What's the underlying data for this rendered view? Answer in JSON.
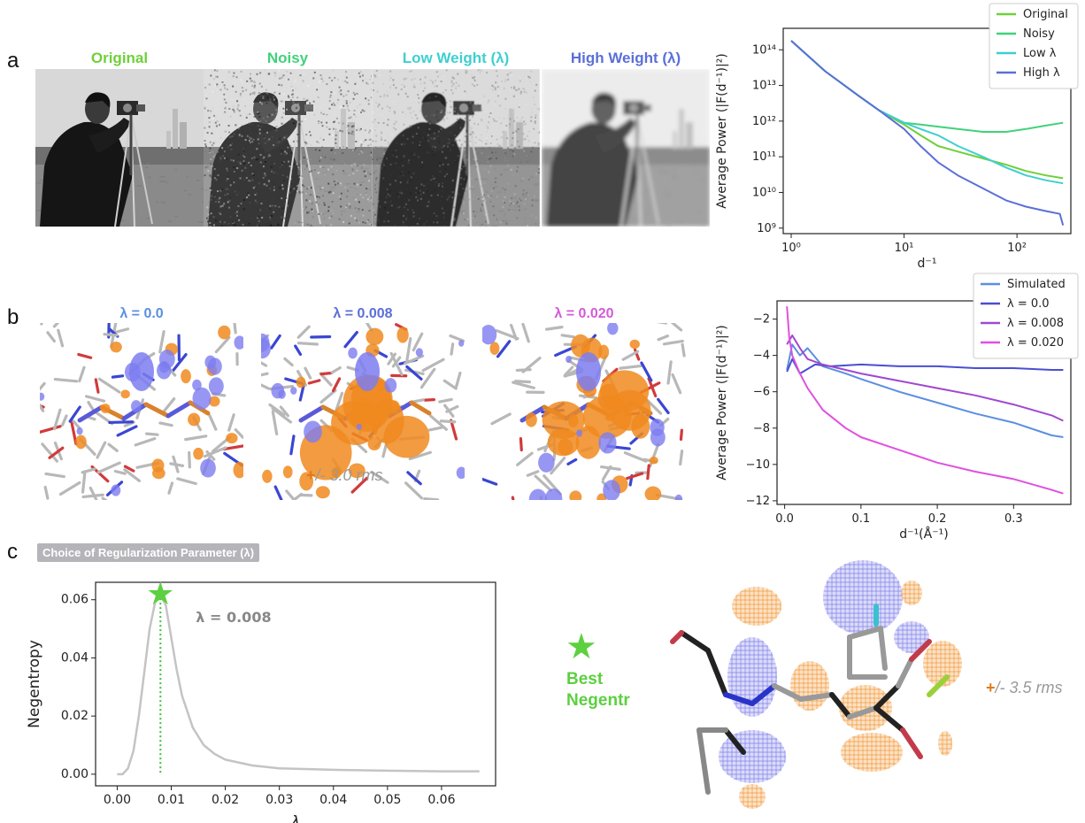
{
  "panel_labels": {
    "a": "a",
    "b": "b",
    "c": "c"
  },
  "row_a": {
    "images": [
      {
        "title": "Original",
        "color": "#6fd03a",
        "blur": 0,
        "noise": 0,
        "dim": 1.0
      },
      {
        "title": "Noisy",
        "color": "#3fd27a",
        "blur": 0,
        "noise": 0.9,
        "dim": 0.85
      },
      {
        "title": "Low Weight (λ)",
        "color": "#3fcfd0",
        "blur": 0.6,
        "noise": 0.45,
        "dim": 0.9
      },
      {
        "title": "High Weight (λ)",
        "color": "#5b6fd8",
        "blur": 2.2,
        "noise": 0,
        "dim": 0.8
      }
    ]
  },
  "row_b": {
    "maps": [
      {
        "title": "λ = 0.0",
        "color": "#5b8fe0",
        "orange": 0.35,
        "blue": 0.55
      },
      {
        "title": "λ = 0.008",
        "color": "#5b6fd8",
        "orange": 0.75,
        "blue": 0.35
      },
      {
        "title": "λ = 0.020",
        "color": "#d35bd8",
        "orange": 1.0,
        "blue": 0.3
      }
    ],
    "contour_plus": "+",
    "contour_rest": "/- 3.0 rms"
  },
  "row_c": {
    "chip": "Choice of Regularization Parameter (λ)",
    "star": "★",
    "best_label_line1": "Best",
    "best_label_line2": "Negentr",
    "contour_plus": "+",
    "contour_rest": "/- 3.5 rms"
  },
  "chart_data": [
    {
      "id": "power-spectrum-images",
      "type": "line",
      "xlabel": "d⁻¹",
      "ylabel": "Average Power (|F(d⁻¹)|²)",
      "xscale": "log",
      "yscale": "log",
      "xlim": [
        0.85,
        300
      ],
      "ylim": [
        700000000.0,
        400000000000000.0
      ],
      "xticks": [
        {
          "v": 1,
          "label": "10⁰"
        },
        {
          "v": 10,
          "label": "10¹"
        },
        {
          "v": 100,
          "label": "10²"
        }
      ],
      "yticks": [
        {
          "v": 1000000000.0,
          "label": "10⁹"
        },
        {
          "v": 10000000000.0,
          "label": "10¹⁰"
        },
        {
          "v": 100000000000.0,
          "label": "10¹¹"
        },
        {
          "v": 1000000000000.0,
          "label": "10¹²"
        },
        {
          "v": 10000000000000.0,
          "label": "10¹³"
        },
        {
          "v": 100000000000000.0,
          "label": "10¹⁴"
        }
      ],
      "legend_placement": "top-right",
      "series": [
        {
          "name": "Original",
          "color": "#6fd03a",
          "x": [
            1,
            2,
            4,
            6,
            10,
            14,
            20,
            30,
            50,
            80,
            120,
            180,
            256
          ],
          "y": [
            180000000000000.0,
            25000000000000.0,
            5000000000000.0,
            2000000000000.0,
            800000000000.0,
            400000000000.0,
            200000000000.0,
            140000000000.0,
            90000000000.0,
            60000000000.0,
            40000000000.0,
            30000000000.0,
            25000000000.0
          ]
        },
        {
          "name": "Noisy",
          "color": "#3fd27a",
          "x": [
            1,
            2,
            4,
            6,
            10,
            14,
            20,
            30,
            50,
            80,
            120,
            180,
            256
          ],
          "y": [
            180000000000000.0,
            25000000000000.0,
            5000000000000.0,
            2000000000000.0,
            900000000000.0,
            800000000000.0,
            700000000000.0,
            600000000000.0,
            500000000000.0,
            500000000000.0,
            600000000000.0,
            750000000000.0,
            900000000000.0
          ]
        },
        {
          "name": "Low λ",
          "color": "#3fcfd0",
          "x": [
            1,
            2,
            4,
            6,
            10,
            14,
            20,
            30,
            50,
            80,
            120,
            180,
            256
          ],
          "y": [
            180000000000000.0,
            25000000000000.0,
            5000000000000.0,
            2000000000000.0,
            900000000000.0,
            600000000000.0,
            400000000000.0,
            200000000000.0,
            100000000000.0,
            50000000000.0,
            30000000000.0,
            22000000000.0,
            18000000000.0
          ]
        },
        {
          "name": "High λ",
          "color": "#5b6fd8",
          "x": [
            1,
            2,
            4,
            6,
            10,
            14,
            20,
            30,
            50,
            80,
            120,
            180,
            240,
            256
          ],
          "y": [
            180000000000000.0,
            25000000000000.0,
            5000000000000.0,
            2000000000000.0,
            600000000000.0,
            200000000000.0,
            70000000000.0,
            30000000000.0,
            13000000000.0,
            6000000000.0,
            4000000000.0,
            3000000000.0,
            2500000000.0,
            1200000000.0
          ]
        }
      ]
    },
    {
      "id": "power-spectrum-maps",
      "type": "line",
      "xlabel": "d⁻¹(Å⁻¹)",
      "ylabel": "Average Power (|F(d⁻¹)|²)",
      "xlim": [
        -0.01,
        0.375
      ],
      "ylim": [
        -12.2,
        -1.0
      ],
      "xticks": [
        {
          "v": 0.0,
          "label": "0.0"
        },
        {
          "v": 0.1,
          "label": "0.1"
        },
        {
          "v": 0.2,
          "label": "0.2"
        },
        {
          "v": 0.3,
          "label": "0.3"
        }
      ],
      "yticks": [
        {
          "v": -2,
          "label": "−2"
        },
        {
          "v": -4,
          "label": "−4"
        },
        {
          "v": -6,
          "label": "−6"
        },
        {
          "v": -8,
          "label": "−8"
        },
        {
          "v": -10,
          "label": "−10"
        },
        {
          "v": -12,
          "label": "−12"
        }
      ],
      "legend_placement": "top-right",
      "series": [
        {
          "name": "Simulated",
          "color": "#5b8fe0",
          "x": [
            0.003,
            0.01,
            0.02,
            0.03,
            0.05,
            0.08,
            0.1,
            0.15,
            0.2,
            0.25,
            0.3,
            0.35,
            0.365
          ],
          "y": [
            -4.8,
            -3.4,
            -4.0,
            -3.6,
            -4.6,
            -5.0,
            -5.3,
            -6.0,
            -6.6,
            -7.2,
            -7.7,
            -8.4,
            -8.5
          ]
        },
        {
          "name": "λ = 0.0",
          "color": "#4a4fd0",
          "x": [
            0.003,
            0.01,
            0.02,
            0.04,
            0.06,
            0.1,
            0.15,
            0.2,
            0.25,
            0.3,
            0.35,
            0.365
          ],
          "y": [
            -4.9,
            -4.2,
            -5.0,
            -4.5,
            -4.6,
            -4.5,
            -4.6,
            -4.6,
            -4.7,
            -4.7,
            -4.8,
            -4.8
          ]
        },
        {
          "name": "λ = 0.008",
          "color": "#a048d0",
          "x": [
            0.003,
            0.01,
            0.02,
            0.03,
            0.05,
            0.08,
            0.1,
            0.15,
            0.2,
            0.25,
            0.3,
            0.35,
            0.365
          ],
          "y": [
            -3.4,
            -2.9,
            -3.6,
            -4.2,
            -4.5,
            -4.8,
            -5.0,
            -5.4,
            -5.8,
            -6.2,
            -6.7,
            -7.3,
            -7.6
          ]
        },
        {
          "name": "λ = 0.020",
          "color": "#e050e0",
          "x": [
            0.003,
            0.006,
            0.01,
            0.02,
            0.03,
            0.05,
            0.08,
            0.1,
            0.15,
            0.2,
            0.25,
            0.3,
            0.35,
            0.365
          ],
          "y": [
            -1.3,
            -3.0,
            -4.0,
            -5.0,
            -5.8,
            -7.0,
            -8.0,
            -8.5,
            -9.2,
            -9.9,
            -10.4,
            -10.8,
            -11.4,
            -11.6
          ]
        }
      ]
    },
    {
      "id": "negentropy",
      "type": "line",
      "xlabel": "λ",
      "ylabel": "Negentropy",
      "xlim": [
        -0.004,
        0.07
      ],
      "ylim": [
        -0.004,
        0.066
      ],
      "xticks": [
        {
          "v": 0.0,
          "label": "0.00"
        },
        {
          "v": 0.01,
          "label": "0.01"
        },
        {
          "v": 0.02,
          "label": "0.02"
        },
        {
          "v": 0.03,
          "label": "0.03"
        },
        {
          "v": 0.04,
          "label": "0.04"
        },
        {
          "v": 0.05,
          "label": "0.05"
        },
        {
          "v": 0.06,
          "label": "0.06"
        }
      ],
      "yticks": [
        {
          "v": 0.0,
          "label": "0.00"
        },
        {
          "v": 0.02,
          "label": "0.02"
        },
        {
          "v": 0.04,
          "label": "0.04"
        },
        {
          "v": 0.06,
          "label": "0.06"
        }
      ],
      "annotation": "λ = 0.008",
      "best_x": 0.008,
      "best_y": 0.062,
      "series": [
        {
          "name": "",
          "color": "#c4c4c4",
          "x": [
            0.0,
            0.001,
            0.002,
            0.003,
            0.004,
            0.005,
            0.006,
            0.007,
            0.008,
            0.009,
            0.01,
            0.011,
            0.012,
            0.014,
            0.016,
            0.018,
            0.02,
            0.025,
            0.03,
            0.04,
            0.05,
            0.06,
            0.067
          ],
          "y": [
            0.0,
            0.0,
            0.002,
            0.008,
            0.02,
            0.035,
            0.05,
            0.059,
            0.062,
            0.058,
            0.047,
            0.036,
            0.027,
            0.016,
            0.01,
            0.007,
            0.005,
            0.003,
            0.002,
            0.0015,
            0.0012,
            0.001,
            0.001
          ]
        }
      ]
    }
  ]
}
